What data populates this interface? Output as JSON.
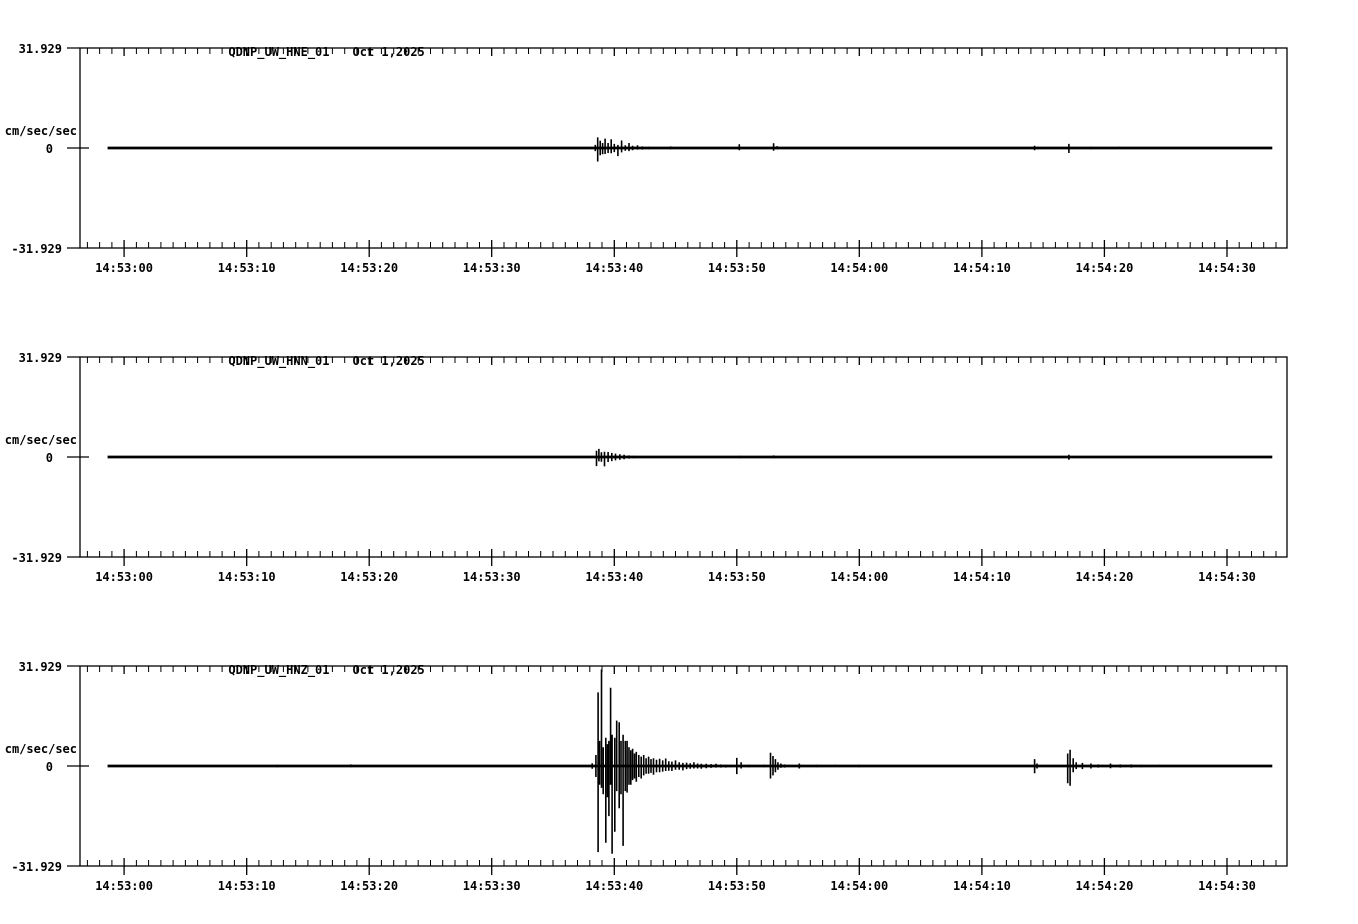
{
  "page": {
    "background_color": "#ffffff",
    "foreground_color": "#000000"
  },
  "chart_data": {
    "type": "line",
    "kind": "seismogram-min-max-trace",
    "amplitude_axis": {
      "max_label": "31.929",
      "zero_label": "0",
      "min_label": "-31.929",
      "units": "cm/sec/sec",
      "max_value": 31.929,
      "ylim": [
        -31.929,
        31.929
      ]
    },
    "time_axis": {
      "labels": [
        "14:53:00",
        "14:53:10",
        "14:53:20",
        "14:53:30",
        "14:53:40",
        "14:53:50",
        "14:54:00",
        "14:54:10",
        "14:54:20",
        "14:54:30"
      ],
      "major_interval_sec": 10,
      "minor_interval_sec": 1,
      "t_min": -3.6,
      "t_max": 94.9,
      "trace_start": -1.35,
      "trace_end": 93.7,
      "grid": false
    },
    "panels": [
      {
        "station": "QDNP_UW_HNE_01",
        "date": "Oct 1,2025",
        "channel": "HNE",
        "spikes": [
          [
            30.0,
            0.3,
            0.3
          ],
          [
            38.45,
            1.0,
            1.0
          ],
          [
            38.65,
            3.4,
            4.3
          ],
          [
            38.85,
            2.3,
            2.3
          ],
          [
            39.05,
            1.6,
            2.0
          ],
          [
            39.25,
            3.0,
            1.9
          ],
          [
            39.5,
            1.6,
            1.6
          ],
          [
            39.75,
            2.8,
            1.7
          ],
          [
            40.0,
            1.3,
            1.3
          ],
          [
            40.3,
            1.0,
            2.6
          ],
          [
            40.6,
            2.4,
            1.4
          ],
          [
            40.9,
            0.9,
            0.9
          ],
          [
            41.2,
            1.6,
            1.0
          ],
          [
            41.5,
            0.7,
            0.7
          ],
          [
            41.9,
            0.9,
            0.5
          ],
          [
            42.3,
            0.5,
            0.5
          ],
          [
            42.8,
            0.4,
            0.4
          ],
          [
            44.6,
            0.5,
            0.4
          ],
          [
            50.2,
            1.2,
            0.7
          ],
          [
            53.0,
            1.5,
            0.9
          ],
          [
            53.3,
            0.6,
            0.4
          ],
          [
            63.0,
            0.3,
            0.3
          ],
          [
            74.3,
            0.7,
            0.7
          ],
          [
            77.1,
            1.3,
            1.6
          ],
          [
            78.9,
            0.4,
            0.4
          ],
          [
            81.2,
            0.4,
            0.3
          ]
        ]
      },
      {
        "station": "QDNP_UW_HNN_01",
        "date": "Oct 1,2025",
        "channel": "HNN",
        "spikes": [
          [
            38.55,
            2.0,
            2.9
          ],
          [
            38.75,
            2.6,
            1.4
          ],
          [
            38.95,
            1.5,
            1.5
          ],
          [
            39.2,
            1.7,
            3.0
          ],
          [
            39.5,
            1.6,
            1.6
          ],
          [
            39.8,
            1.3,
            1.3
          ],
          [
            40.1,
            1.1,
            1.1
          ],
          [
            40.45,
            0.9,
            0.9
          ],
          [
            40.8,
            0.7,
            0.7
          ],
          [
            41.2,
            0.5,
            0.5
          ],
          [
            41.6,
            0.4,
            0.4
          ],
          [
            44.6,
            0.3,
            0.3
          ],
          [
            50.2,
            0.4,
            0.4
          ],
          [
            53.0,
            0.5,
            0.4
          ],
          [
            70.5,
            0.25,
            0.25
          ],
          [
            74.3,
            0.3,
            0.3
          ],
          [
            77.1,
            0.7,
            0.9
          ],
          [
            81.2,
            0.25,
            0.25
          ]
        ]
      },
      {
        "station": "QDNP_UW_HNZ_01",
        "date": "Oct 1,2025",
        "channel": "HNZ",
        "spikes": [
          [
            12.5,
            0.4,
            0.4
          ],
          [
            18.5,
            0.5,
            0.4
          ],
          [
            25.0,
            0.3,
            0.3
          ],
          [
            30.0,
            0.3,
            0.3
          ],
          [
            38.2,
            0.9,
            0.9
          ],
          [
            38.5,
            3.5,
            3.5
          ],
          [
            38.68,
            23.5,
            27.5
          ],
          [
            38.8,
            8,
            6
          ],
          [
            38.96,
            30.8,
            7
          ],
          [
            39.1,
            6,
            9
          ],
          [
            39.31,
            9,
            24.5
          ],
          [
            39.45,
            7,
            10
          ],
          [
            39.56,
            8,
            16
          ],
          [
            39.7,
            25,
            6
          ],
          [
            39.82,
            10,
            28
          ],
          [
            40.04,
            9,
            21
          ],
          [
            40.2,
            14.5,
            8
          ],
          [
            40.4,
            14,
            13.5
          ],
          [
            40.55,
            8,
            9
          ],
          [
            40.72,
            10,
            25.5
          ],
          [
            40.9,
            8,
            8
          ],
          [
            41.05,
            8,
            8.5
          ],
          [
            41.2,
            6,
            6
          ],
          [
            41.35,
            5,
            6
          ],
          [
            41.5,
            5.5,
            4.5
          ],
          [
            41.65,
            4,
            4
          ],
          [
            41.8,
            4.5,
            5
          ],
          [
            42.0,
            3.5,
            3.5
          ],
          [
            42.2,
            3,
            4
          ],
          [
            42.4,
            3.5,
            3
          ],
          [
            42.6,
            2.5,
            2.5
          ],
          [
            42.8,
            3,
            2.5
          ],
          [
            43.0,
            2.2,
            2.2
          ],
          [
            43.2,
            2.5,
            2.8
          ],
          [
            43.45,
            2,
            2
          ],
          [
            43.7,
            2.3,
            2
          ],
          [
            43.95,
            1.8,
            1.8
          ],
          [
            44.2,
            2.4,
            1.6
          ],
          [
            44.45,
            1.5,
            1.5
          ],
          [
            44.7,
            1.4,
            1.6
          ],
          [
            45.0,
            1.8,
            1.2
          ],
          [
            45.3,
            1.2,
            1.2
          ],
          [
            45.6,
            1.0,
            1.4
          ],
          [
            45.9,
            1.1,
            1.0
          ],
          [
            46.2,
            0.9,
            0.9
          ],
          [
            46.5,
            1.2,
            0.8
          ],
          [
            46.8,
            0.8,
            0.8
          ],
          [
            47.1,
            0.7,
            0.9
          ],
          [
            47.5,
            0.7,
            0.7
          ],
          [
            47.9,
            0.6,
            0.6
          ],
          [
            48.3,
            0.7,
            0.5
          ],
          [
            48.7,
            0.5,
            0.5
          ],
          [
            49.1,
            0.4,
            0.5
          ],
          [
            49.5,
            0.4,
            0.4
          ],
          [
            50.0,
            2.6,
            2.6
          ],
          [
            50.35,
            1.2,
            0.8
          ],
          [
            51.0,
            0.4,
            0.4
          ],
          [
            52.2,
            0.4,
            0.4
          ],
          [
            52.75,
            4.2,
            4.0
          ],
          [
            52.95,
            3.2,
            3.0
          ],
          [
            53.15,
            2.2,
            2.0
          ],
          [
            53.35,
            1.2,
            1.2
          ],
          [
            53.6,
            0.8,
            0.6
          ],
          [
            53.9,
            0.5,
            0.5
          ],
          [
            55.1,
            0.8,
            0.8
          ],
          [
            56.5,
            0.4,
            0.4
          ],
          [
            58.0,
            0.4,
            0.3
          ],
          [
            60.0,
            0.4,
            0.4
          ],
          [
            62.5,
            0.3,
            0.3
          ],
          [
            65.0,
            0.3,
            0.3
          ],
          [
            67.0,
            0.3,
            0.3
          ],
          [
            70.0,
            0.3,
            0.3
          ],
          [
            74.3,
            2.2,
            2.3
          ],
          [
            74.5,
            0.8,
            0.8
          ],
          [
            77.0,
            4.0,
            5.5
          ],
          [
            77.2,
            5.2,
            6.3
          ],
          [
            77.45,
            2.5,
            2.0
          ],
          [
            77.7,
            1.2,
            1.0
          ],
          [
            78.2,
            1.0,
            1.0
          ],
          [
            78.9,
            0.8,
            0.8
          ],
          [
            79.5,
            0.5,
            0.5
          ],
          [
            80.5,
            0.8,
            0.7
          ],
          [
            81.3,
            0.5,
            0.5
          ],
          [
            82.2,
            0.5,
            0.5
          ],
          [
            83.0,
            0.4,
            0.4
          ],
          [
            84.5,
            0.4,
            0.3
          ],
          [
            86.0,
            0.3,
            0.3
          ],
          [
            88.0,
            0.3,
            0.3
          ],
          [
            90.5,
            0.3,
            0.3
          ]
        ]
      }
    ]
  }
}
